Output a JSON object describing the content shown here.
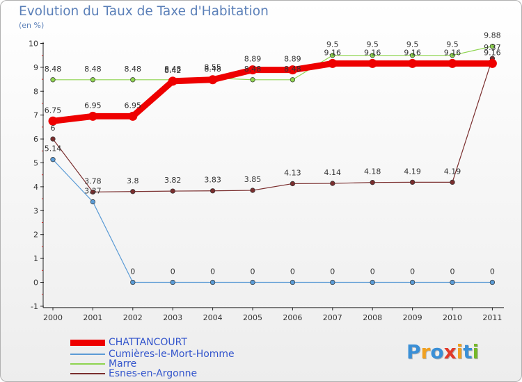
{
  "header": {
    "title": "Evolution du Taux de Taxe d'Habitation",
    "subtitle": "(en %)"
  },
  "logo": {
    "text": "Proxiti",
    "letters": [
      "P",
      "r",
      "o",
      "x",
      "i",
      "t",
      "i"
    ],
    "colors": [
      "#3a8fd6",
      "#f0a020",
      "#3a8fd6",
      "#e23a2a",
      "#f0a020",
      "#3a8fd6",
      "#76b82a"
    ]
  },
  "chart_data": {
    "type": "line",
    "title": "Evolution du Taux de Taxe d'Habitation",
    "ylabel": "(en %)",
    "xlabel": "",
    "categories": [
      "2000",
      "2001",
      "2002",
      "2003",
      "2004",
      "2005",
      "2006",
      "2007",
      "2008",
      "2009",
      "2010",
      "2011"
    ],
    "ylim": [
      -1,
      10
    ],
    "yticks": [
      "-1",
      "0",
      "1",
      "2",
      "3",
      "4",
      "5",
      "6",
      "7",
      "8",
      "9",
      "10"
    ],
    "grid": false,
    "legend_position": "bottom-left",
    "series": [
      {
        "name": "CHATTANCOURT",
        "color": "#ee0000",
        "width": "thick",
        "values": [
          6.75,
          6.95,
          6.95,
          8.42,
          8.48,
          8.89,
          8.89,
          9.16,
          9.16,
          9.16,
          9.16,
          9.16
        ],
        "labels": [
          "6.75",
          "6.95",
          "6.95",
          "8.42",
          "8.48",
          "8.89",
          "8.89",
          "9.16",
          "9.16",
          "9.16",
          "9.16",
          "9.16"
        ]
      },
      {
        "name": "Cumières-le-Mort-Homme",
        "color": "#5b9bd5",
        "width": "thin",
        "values": [
          5.14,
          3.37,
          0,
          0,
          0,
          0,
          0,
          0,
          0,
          0,
          0,
          0
        ],
        "labels": [
          "5.14",
          "3.37",
          "0",
          "0",
          "0",
          "0",
          "0",
          "0",
          "0",
          "0",
          "0",
          "0"
        ]
      },
      {
        "name": "Marre",
        "color": "#8ed44f",
        "width": "thin",
        "values": [
          8.48,
          8.48,
          8.48,
          8.48,
          8.55,
          8.48,
          8.48,
          9.5,
          9.5,
          9.5,
          9.5,
          9.88
        ],
        "labels": [
          "8.48",
          "8.48",
          "8.48",
          "8.48",
          "8.55",
          "8.48",
          "8.48",
          "9.5",
          "9.5",
          "9.5",
          "9.5",
          "9.88"
        ]
      },
      {
        "name": "Esnes-en-Argonne",
        "color": "#7a2e2e",
        "width": "thin",
        "values": [
          6,
          3.78,
          3.8,
          3.82,
          3.83,
          3.85,
          4.13,
          4.14,
          4.18,
          4.19,
          4.19,
          9.37
        ],
        "labels": [
          "6",
          "3.78",
          "3.8",
          "3.82",
          "3.83",
          "3.85",
          "4.13",
          "4.14",
          "4.18",
          "4.19",
          "4.19",
          "9.37"
        ]
      }
    ]
  }
}
